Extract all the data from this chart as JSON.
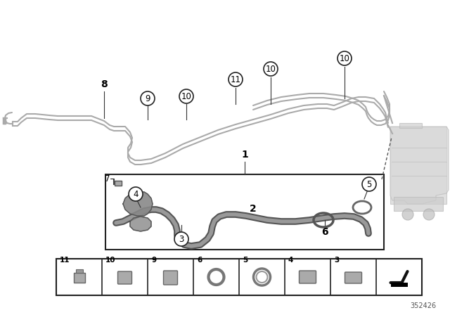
{
  "background_color": "#ffffff",
  "part_number": "352426",
  "pipe_color": "#aaaaaa",
  "pipe_lw": 1.8,
  "hose_dark": "#666666",
  "hose_light": "#bbbbbb",
  "text_dark": "#111111",
  "callout_circle_color": "#222222",
  "box_color": "#333333",
  "figsize": [
    6.4,
    4.48
  ],
  "dpi": 100
}
